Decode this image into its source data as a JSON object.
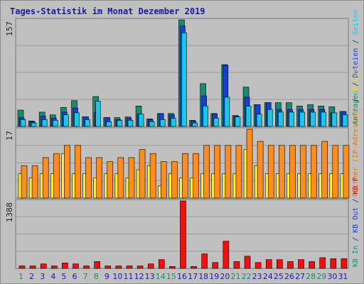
{
  "chart_data": [
    {
      "type": "bar",
      "title": "Tages-Statistik im Monat Dezember 2019",
      "ymax_label": "157",
      "ylim": [
        0,
        157
      ],
      "legend": [
        {
          "label": "Anfragen",
          "color": "#1a8a6e"
        },
        {
          "label": "/",
          "color": "#1a1aa8"
        },
        {
          "label": "Dateien",
          "color": "#1a3fcf"
        },
        {
          "label": "/",
          "color": "#1a1aa8"
        },
        {
          "label": "Seiten",
          "color": "#19c8e8"
        }
      ],
      "categories": [
        "1",
        "2",
        "3",
        "4",
        "5",
        "6",
        "7",
        "8",
        "9",
        "10",
        "11",
        "12",
        "13",
        "14",
        "15",
        "16",
        "17",
        "18",
        "19",
        "20",
        "21",
        "22",
        "23",
        "24",
        "25",
        "26",
        "27",
        "28",
        "29",
        "30",
        "31"
      ],
      "series": [
        {
          "name": "Anfragen",
          "color": "#1a8a6e",
          "values": [
            24,
            8,
            21,
            17,
            28,
            38,
            14,
            44,
            13,
            13,
            14,
            30,
            11,
            19,
            19,
            157,
            9,
            63,
            19,
            91,
            16,
            58,
            32,
            35,
            35,
            35,
            30,
            32,
            30,
            29,
            22
          ]
        },
        {
          "name": "Dateien",
          "color": "#1a3fcf",
          "values": [
            13,
            7,
            15,
            12,
            21,
            27,
            14,
            21,
            13,
            10,
            12,
            18,
            10,
            19,
            17,
            148,
            8,
            45,
            18,
            90,
            15,
            43,
            32,
            35,
            25,
            25,
            25,
            25,
            25,
            20,
            22
          ]
        },
        {
          "name": "Seiten",
          "color": "#19c8e8",
          "values": [
            10,
            5,
            10,
            9,
            17,
            20,
            10,
            37,
            7,
            9,
            9,
            18,
            7,
            10,
            12,
            138,
            5,
            30,
            12,
            43,
            14,
            30,
            18,
            25,
            21,
            21,
            21,
            21,
            21,
            20,
            17
          ]
        }
      ]
    },
    {
      "type": "bar",
      "ymax_label": "17",
      "ylim": [
        0,
        17
      ],
      "legend": [
        {
          "label": "Rechner (IP-Adressen)",
          "color": "#e87814"
        },
        {
          "label": "/",
          "color": "#1a1aa8"
        },
        {
          "label": "KB Out",
          "color": "#eedd11"
        }
      ],
      "categories": [
        "1",
        "2",
        "3",
        "4",
        "5",
        "6",
        "7",
        "8",
        "9",
        "10",
        "11",
        "12",
        "13",
        "14",
        "15",
        "16",
        "17",
        "18",
        "19",
        "20",
        "21",
        "22",
        "23",
        "24",
        "25",
        "26",
        "27",
        "28",
        "29",
        "30",
        "31"
      ],
      "series": [
        {
          "name": "Rechner (IP-Adressen)",
          "color": "#ff8c1e",
          "values": [
            8,
            8,
            10,
            11,
            13,
            13,
            10,
            10,
            9,
            10,
            10,
            12,
            11,
            9,
            9,
            11,
            11,
            13,
            13,
            13,
            13,
            17,
            14,
            13,
            13,
            13,
            13,
            13,
            14,
            13,
            13
          ]
        },
        {
          "name": "KB Out",
          "color": "#ffee33",
          "values": [
            6,
            5,
            6,
            6,
            11,
            6,
            6,
            5,
            6,
            6,
            5,
            7,
            8,
            3,
            6,
            5,
            5,
            6,
            6,
            6,
            6,
            12,
            8,
            6,
            6,
            6,
            6,
            6,
            6,
            6,
            6
          ]
        }
      ]
    },
    {
      "type": "bar",
      "ymax_label": "1388",
      "ylim": [
        0,
        1388
      ],
      "legend": [
        {
          "label": "KB In",
          "color": "#1a8a6e"
        },
        {
          "label": "/",
          "color": "#1a1aa8"
        },
        {
          "label": "KB Out",
          "color": "#1a3fcf"
        },
        {
          "label": "/",
          "color": "#1a1aa8"
        },
        {
          "label": "KB F",
          "color": "#cc1111"
        }
      ],
      "categories": [
        "1",
        "2",
        "3",
        "4",
        "5",
        "6",
        "7",
        "8",
        "9",
        "10",
        "11",
        "12",
        "13",
        "14",
        "15",
        "16",
        "17",
        "18",
        "19",
        "20",
        "21",
        "22",
        "23",
        "24",
        "25",
        "26",
        "27",
        "28",
        "29",
        "30",
        "31"
      ],
      "series": [
        {
          "name": "KB F",
          "color": "#ee1111",
          "values": [
            51,
            51,
            92,
            51,
            112,
            92,
            51,
            140,
            51,
            51,
            51,
            51,
            92,
            180,
            40,
            1388,
            40,
            298,
            120,
            560,
            140,
            251,
            120,
            180,
            180,
            140,
            180,
            140,
            220,
            200,
            200
          ]
        }
      ]
    }
  ],
  "weekend_days": [
    1,
    7,
    8,
    14,
    15,
    21,
    22,
    28,
    29
  ],
  "colors": {
    "frame": "#c0c0c0",
    "plot": "#c0c0c0",
    "day_weekday": "#1a1aa8",
    "day_weekend": "#1a8a6e"
  }
}
